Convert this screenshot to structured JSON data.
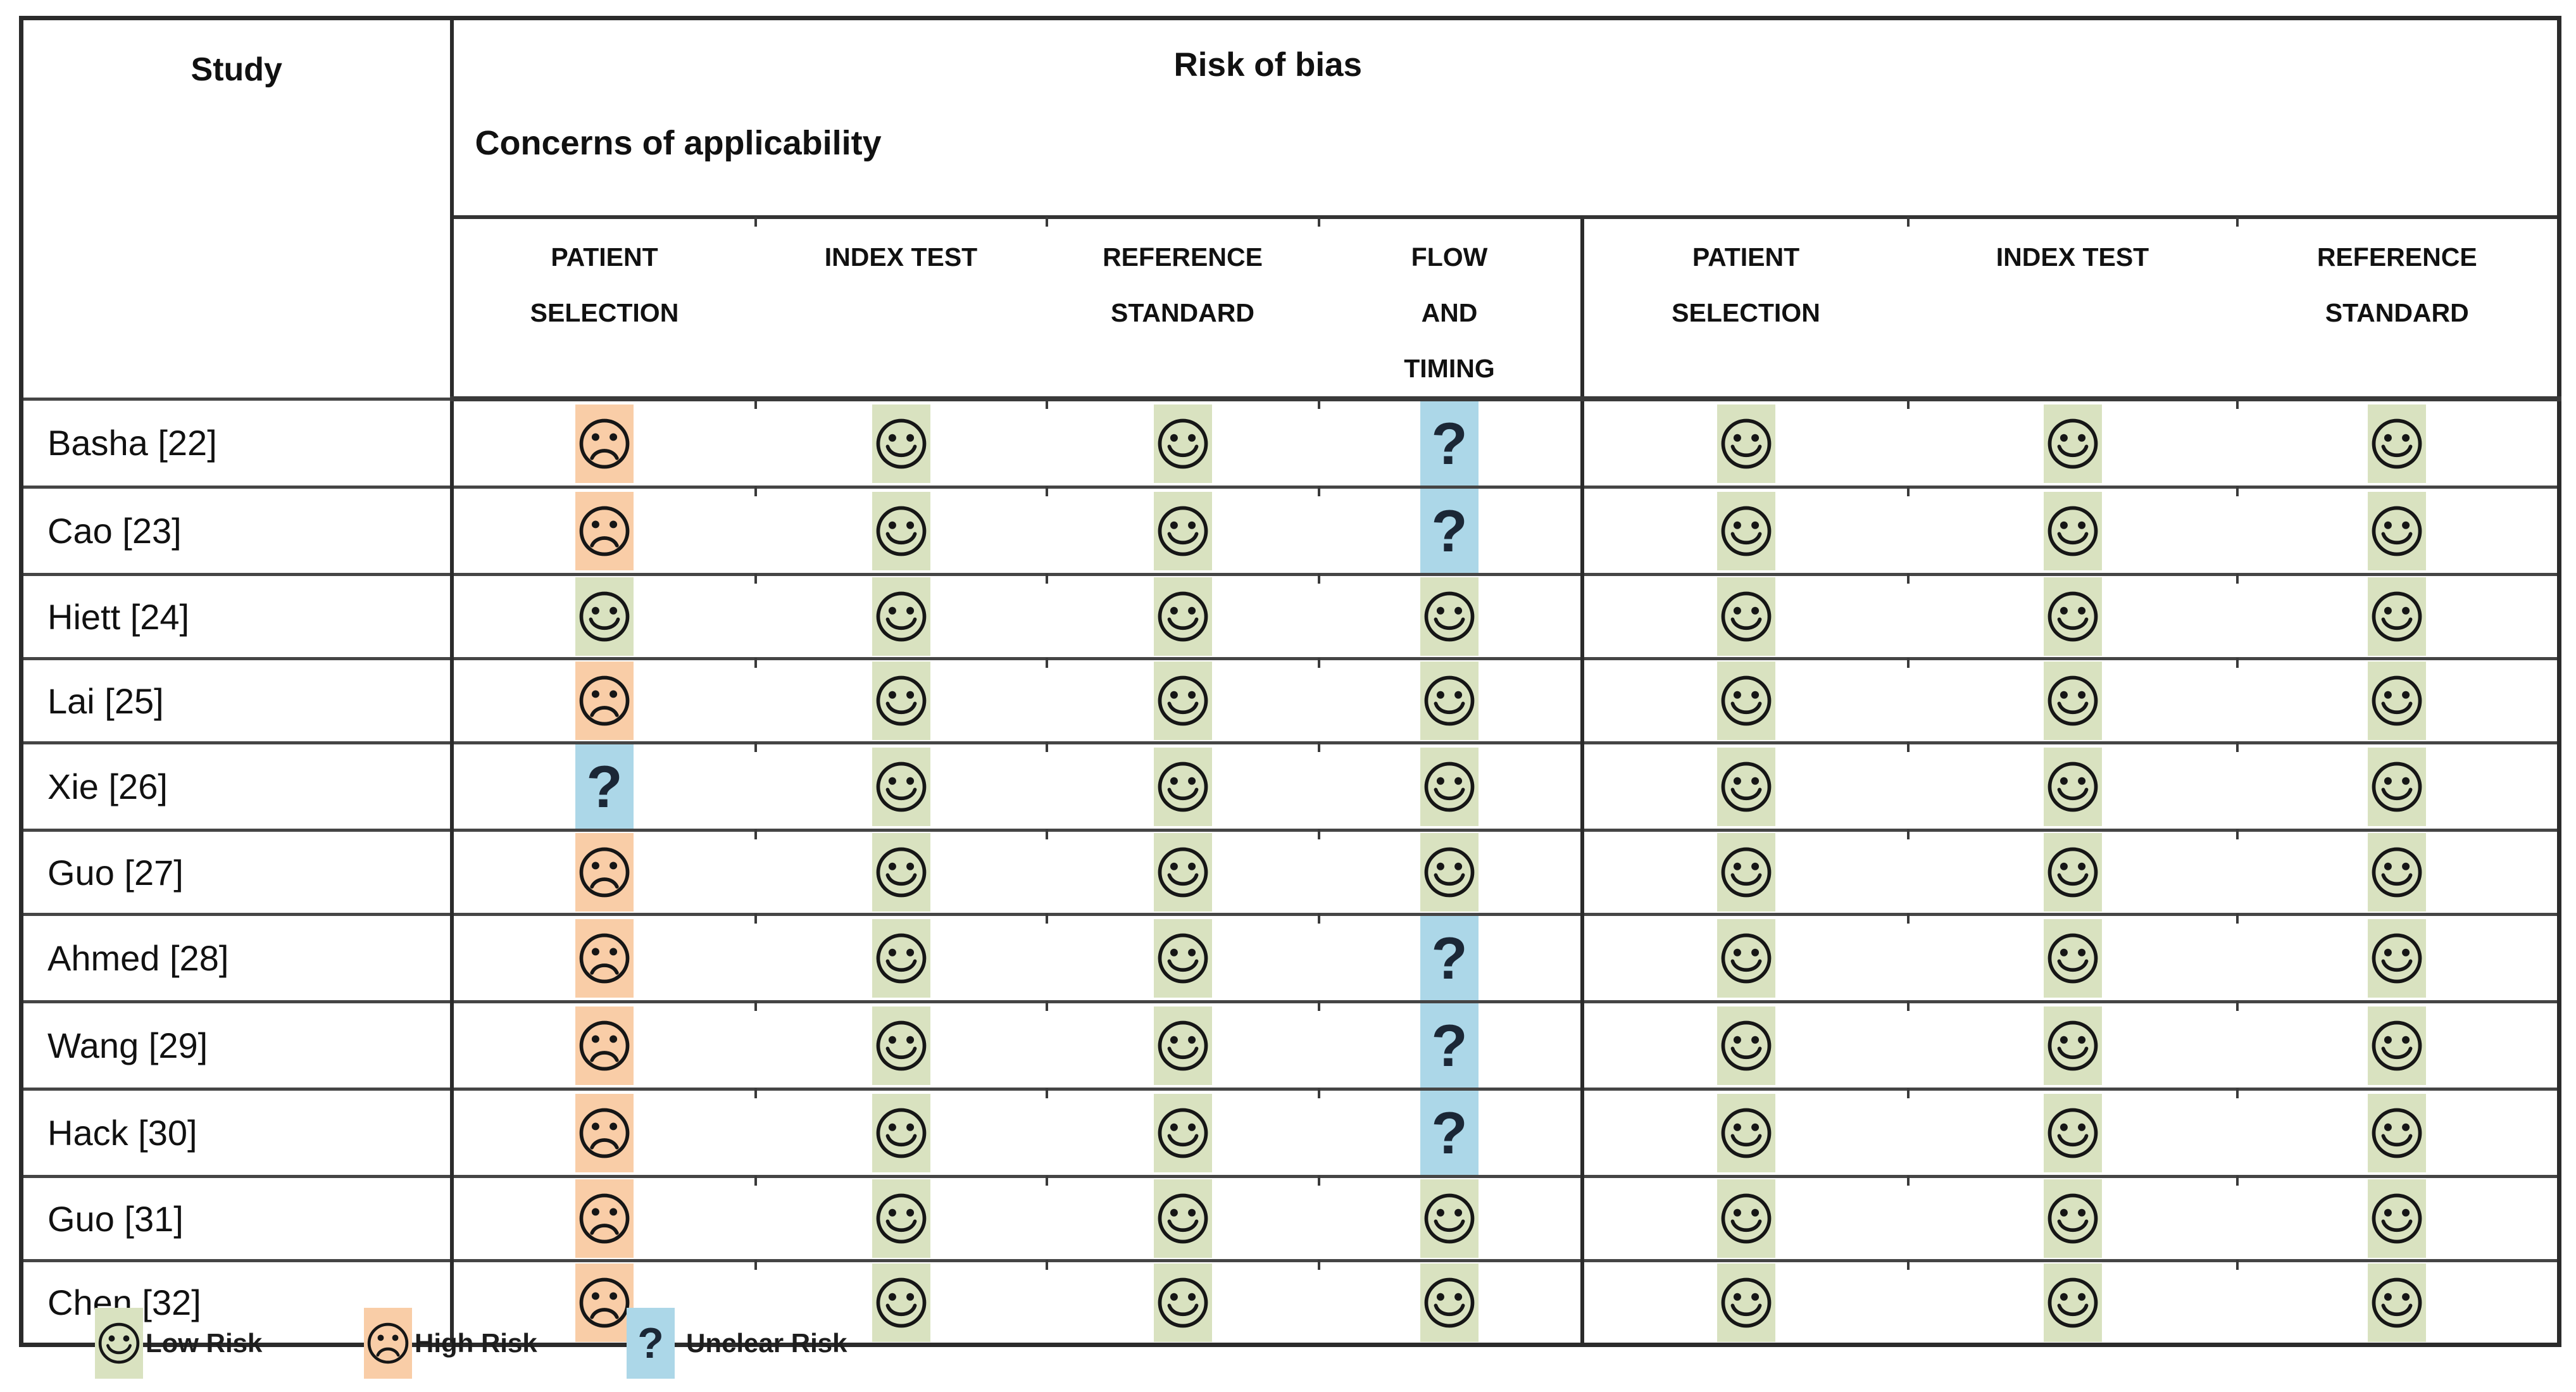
{
  "table": {
    "study_header": "Study",
    "risk_of_bias_title": "Risk of bias",
    "applicability_title": "Concerns of applicability",
    "rob_columns": [
      {
        "label": "PATIENT SELECTION",
        "lines": [
          "PATIENT",
          "SELECTION"
        ]
      },
      {
        "label": "INDEX TEST",
        "lines": [
          "INDEX TEST"
        ]
      },
      {
        "label": "REFERENCE STANDARD",
        "lines": [
          "REFERENCE",
          "STANDARD"
        ]
      },
      {
        "label": "FLOW AND TIMING",
        "lines": [
          "FLOW",
          "AND",
          "TIMING"
        ]
      }
    ],
    "app_columns": [
      {
        "label": "PATIENT SELECTION",
        "lines": [
          "PATIENT",
          "SELECTION"
        ]
      },
      {
        "label": "INDEX TEST",
        "lines": [
          "INDEX TEST"
        ]
      },
      {
        "label": "REFERENCE STANDARD",
        "lines": [
          "REFERENCE",
          "STANDARD"
        ]
      }
    ],
    "studies": [
      {
        "label": "Basha [22]",
        "risk_of_bias": [
          "high",
          "low",
          "low",
          "unclear"
        ],
        "applicability": [
          "low",
          "low",
          "low"
        ]
      },
      {
        "label": "Cao [23]",
        "risk_of_bias": [
          "high",
          "low",
          "low",
          "unclear"
        ],
        "applicability": [
          "low",
          "low",
          "low"
        ]
      },
      {
        "label": "Hiett [24]",
        "risk_of_bias": [
          "low",
          "low",
          "low",
          "low"
        ],
        "applicability": [
          "low",
          "low",
          "low"
        ]
      },
      {
        "label": "Lai [25]",
        "risk_of_bias": [
          "high",
          "low",
          "low",
          "low"
        ],
        "applicability": [
          "low",
          "low",
          "low"
        ]
      },
      {
        "label": "Xie [26]",
        "risk_of_bias": [
          "unclear",
          "low",
          "low",
          "low"
        ],
        "applicability": [
          "low",
          "low",
          "low"
        ]
      },
      {
        "label": "Guo [27]",
        "risk_of_bias": [
          "high",
          "low",
          "low",
          "low"
        ],
        "applicability": [
          "low",
          "low",
          "low"
        ]
      },
      {
        "label": "Ahmed [28]",
        "risk_of_bias": [
          "high",
          "low",
          "low",
          "unclear"
        ],
        "applicability": [
          "low",
          "low",
          "low"
        ]
      },
      {
        "label": "Wang [29]",
        "risk_of_bias": [
          "high",
          "low",
          "low",
          "unclear"
        ],
        "applicability": [
          "low",
          "low",
          "low"
        ]
      },
      {
        "label": "Hack [30]",
        "risk_of_bias": [
          "high",
          "low",
          "low",
          "unclear"
        ],
        "applicability": [
          "low",
          "low",
          "low"
        ]
      },
      {
        "label": "Guo [31]",
        "risk_of_bias": [
          "high",
          "low",
          "low",
          "low"
        ],
        "applicability": [
          "low",
          "low",
          "low"
        ]
      },
      {
        "label": "Chen [32]",
        "risk_of_bias": [
          "high",
          "low",
          "low",
          "low"
        ],
        "applicability": [
          "low",
          "low",
          "low"
        ]
      }
    ]
  },
  "legend": {
    "items": [
      {
        "risk": "low",
        "label": "Low Risk",
        "icon": "smiley-face"
      },
      {
        "risk": "high",
        "label": "High Risk",
        "icon": "frowny-face"
      },
      {
        "risk": "unclear",
        "label": "Unclear Risk",
        "icon": "question-mark"
      }
    ]
  },
  "symbols": {
    "question_mark": "?"
  },
  "colors": {
    "low_bg": "#D9E2C0",
    "high_bg": "#F9CDA7",
    "unclear_bg": "#ACD7E8",
    "icon_stroke": "#161616",
    "question_mark_color": "#1B2736",
    "grid_line": "#454545",
    "outer_border": "#2B2B2B"
  }
}
